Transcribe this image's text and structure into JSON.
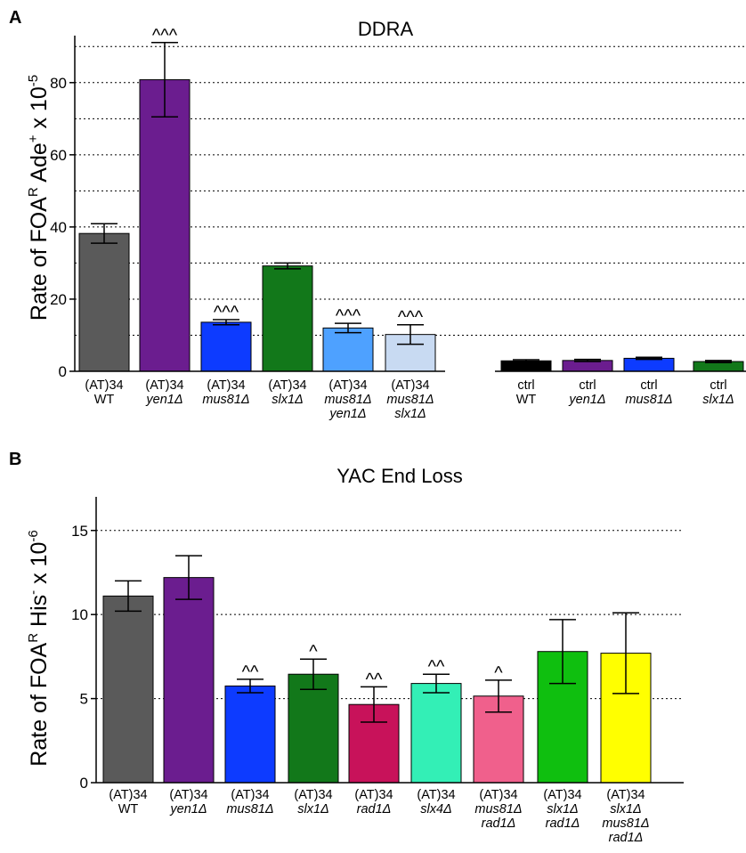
{
  "chart_data": [
    {
      "panel": "A",
      "type": "bar",
      "title": "DDRA",
      "ylabel": "Rate of FOAᴿ Ade⁺ x 10⁻⁵",
      "ylim": [
        0,
        95
      ],
      "yticks": [
        0,
        20,
        40,
        60,
        80
      ],
      "grid_lines": [
        10,
        20,
        30,
        40,
        50,
        60,
        70,
        80,
        90
      ],
      "categories": [
        {
          "line1": "(AT)34",
          "line2": "WT"
        },
        {
          "line1": "(AT)34",
          "line2": "yen1Δ"
        },
        {
          "line1": "(AT)34",
          "line2": "mus81Δ"
        },
        {
          "line1": "(AT)34",
          "line2": "slx1Δ"
        },
        {
          "line1": "(AT)34",
          "line2": "mus81Δ",
          "line3": "yen1Δ"
        },
        {
          "line1": "(AT)34",
          "line2": "mus81Δ",
          "line3": "slx1Δ"
        },
        {
          "line1": "ctrl",
          "line2": "WT"
        },
        {
          "line1": "ctrl",
          "line2": "yen1Δ"
        },
        {
          "line1": "ctrl",
          "line2": "mus81Δ"
        },
        {
          "line1": "ctrl",
          "line2": "slx1Δ"
        }
      ],
      "values": [
        38.2,
        80.8,
        13.6,
        29.2,
        12.0,
        10.2,
        2.9,
        3.0,
        3.6,
        2.7
      ],
      "errors": [
        2.7,
        10.3,
        0.7,
        0.8,
        1.3,
        2.7,
        0.3,
        0.3,
        0.3,
        0.3
      ],
      "significance": [
        "",
        "^^^",
        "^^^",
        "",
        "^^^",
        "^^^",
        "",
        "",
        "",
        ""
      ],
      "colors": [
        "#5a5a5a",
        "#6b1d8f",
        "#0d3bff",
        "#12781a",
        "#4ea1ff",
        "#c8daf2",
        "#000000",
        "#6b1d8f",
        "#0d3bff",
        "#12781a"
      ]
    },
    {
      "panel": "B",
      "type": "bar",
      "title": "YAC End Loss",
      "ylabel": "Rate of FOAᴿ His⁻ x 10⁻⁶",
      "ylim": [
        0,
        17
      ],
      "yticks": [
        0,
        5,
        10,
        15
      ],
      "grid_lines": [
        5,
        10,
        15
      ],
      "categories": [
        {
          "line1": "(AT)34",
          "line2": "WT"
        },
        {
          "line1": "(AT)34",
          "line2": "yen1Δ"
        },
        {
          "line1": "(AT)34",
          "line2": "mus81Δ"
        },
        {
          "line1": "(AT)34",
          "line2": "slx1Δ"
        },
        {
          "line1": "(AT)34",
          "line2": "rad1Δ"
        },
        {
          "line1": "(AT)34",
          "line2": "slx4Δ"
        },
        {
          "line1": "(AT)34",
          "line2": "mus81Δ",
          "line3": "rad1Δ"
        },
        {
          "line1": "(AT)34",
          "line2": "slx1Δ",
          "line3": "rad1Δ"
        },
        {
          "line1": "(AT)34",
          "line2": "slx1Δ",
          "line3": "mus81Δ",
          "line4": "rad1Δ"
        }
      ],
      "values": [
        11.1,
        12.2,
        5.75,
        6.45,
        4.65,
        5.9,
        5.15,
        7.8,
        7.7
      ],
      "errors": [
        0.9,
        1.3,
        0.4,
        0.9,
        1.05,
        0.55,
        0.95,
        1.9,
        2.4
      ],
      "significance": [
        "",
        "",
        "^^",
        "^",
        "^^",
        "^^",
        "^",
        "",
        ""
      ],
      "colors": [
        "#5a5a5a",
        "#6b1d8f",
        "#0d3bff",
        "#12781a",
        "#c8125a",
        "#33efb6",
        "#f0608c",
        "#0fbf0f",
        "#ffff00"
      ]
    }
  ]
}
